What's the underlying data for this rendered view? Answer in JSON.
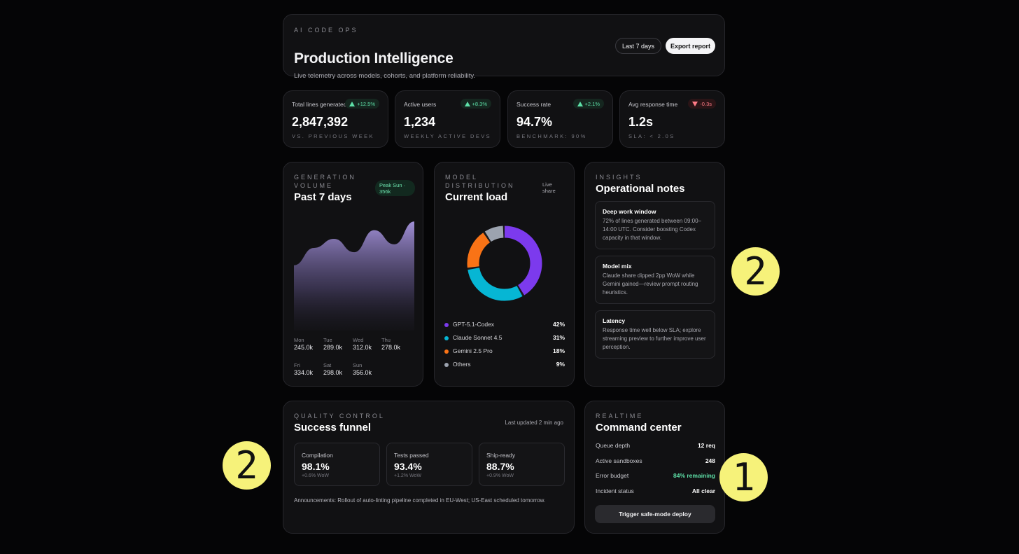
{
  "header": {
    "eyebrow": "AI CODE OPS",
    "title": "Production Intelligence",
    "subtitle": "Live telemetry across models, cohorts, and platform reliability.",
    "range_button": "Last 7 days",
    "export_button": "Export report"
  },
  "kpis": [
    {
      "label": "Total lines generated",
      "delta": "+12.5%",
      "direction": "up",
      "value": "2,847,392",
      "caption": "VS. PREVIOUS WEEK"
    },
    {
      "label": "Active users",
      "delta": "+8.3%",
      "direction": "up",
      "value": "1,234",
      "caption": "WEEKLY ACTIVE DEVS"
    },
    {
      "label": "Success rate",
      "delta": "+2.1%",
      "direction": "up",
      "value": "94.7%",
      "caption": "BENCHMARK: 90%"
    },
    {
      "label": "Avg response time",
      "delta": "-0.3s",
      "direction": "down",
      "value": "1.2s",
      "caption": "SLA: < 2.0S"
    }
  ],
  "generation": {
    "eyebrow": "GENERATION VOLUME",
    "title": "Past 7 days",
    "peak": "Peak Sun · 356k",
    "days": [
      {
        "day": "Mon",
        "value": "245.0k"
      },
      {
        "day": "Tue",
        "value": "289.0k"
      },
      {
        "day": "Wed",
        "value": "312.0k"
      },
      {
        "day": "Thu",
        "value": "278.0k"
      },
      {
        "day": "Fri",
        "value": "334.0k"
      },
      {
        "day": "Sat",
        "value": "298.0k"
      },
      {
        "day": "Sun",
        "value": "356.0k"
      }
    ]
  },
  "distribution": {
    "eyebrow": "MODEL DISTRIBUTION",
    "title": "Current load",
    "live": "Live share",
    "items": [
      {
        "name": "GPT-5.1-Codex",
        "pct": "42%",
        "share": 42,
        "color": "#7c3aed"
      },
      {
        "name": "Claude Sonnet 4.5",
        "pct": "31%",
        "share": 31,
        "color": "#06b6d4"
      },
      {
        "name": "Gemini 2.5 Pro",
        "pct": "18%",
        "share": 18,
        "color": "#f97316"
      },
      {
        "name": "Others",
        "pct": "9%",
        "share": 9,
        "color": "#9ca3af"
      }
    ]
  },
  "insights": {
    "eyebrow": "INSIGHTS",
    "title": "Operational notes",
    "notes": [
      {
        "title": "Deep work window",
        "body": "72% of lines generated between 09:00–14:00 UTC. Consider boosting Codex capacity in that window."
      },
      {
        "title": "Model mix",
        "body": "Claude share dipped 2pp WoW while Gemini gained—review prompt routing heuristics."
      },
      {
        "title": "Latency",
        "body": "Response time well below SLA; explore streaming preview to further improve user perception."
      }
    ]
  },
  "quality": {
    "eyebrow": "QUALITY CONTROL",
    "title": "Success funnel",
    "updated": "Last updated 2 min ago",
    "stages": [
      {
        "label": "Compilation",
        "value": "98.1%",
        "delta": "+0.6% WoW"
      },
      {
        "label": "Tests passed",
        "value": "93.4%",
        "delta": "+1.2% WoW"
      },
      {
        "label": "Ship-ready",
        "value": "88.7%",
        "delta": "+0.9% WoW"
      }
    ],
    "announcement": "Announcements: Rollout of auto-linting pipeline completed in EU-West; US-East scheduled tomorrow."
  },
  "command": {
    "eyebrow": "REALTIME",
    "title": "Command center",
    "rows": [
      {
        "label": "Queue depth",
        "value": "12 req"
      },
      {
        "label": "Active sandboxes",
        "value": "248"
      },
      {
        "label": "Error budget",
        "value": "84% remaining"
      },
      {
        "label": "Incident status",
        "value": "All clear"
      }
    ],
    "button": "Trigger safe-mode deploy"
  },
  "markers": {
    "insights": "2",
    "quality": "2",
    "command": "1"
  }
}
